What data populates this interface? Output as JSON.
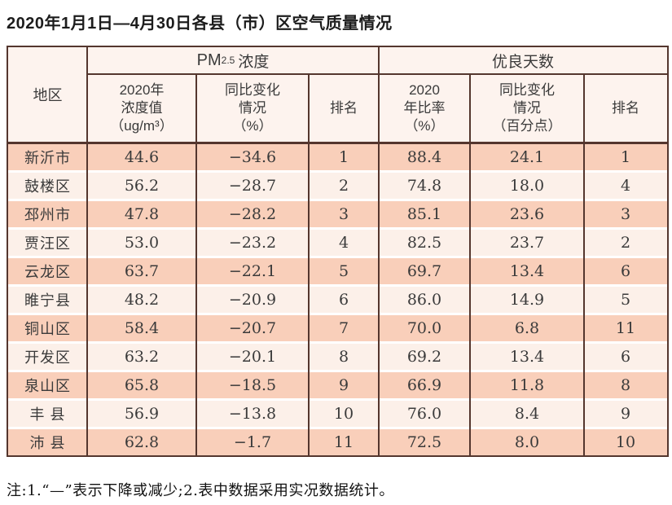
{
  "title": "2020年1月1日—4月30日各县（市）区空气质量情况",
  "note": "注:1.“—”表示下降或减少;2.表中数据采用实况数据统计。",
  "colors": {
    "grid_line": "#54362e",
    "row_salmon": "#f9cfba",
    "row_light": "#fcf0e9",
    "header_bg": "#fdf3ee",
    "text": "#3a3a3a"
  },
  "table": {
    "region_header": "地区",
    "group_pm25": {
      "pm": "PM",
      "sub": "2.5",
      "conc": "浓度"
    },
    "group_good_days": "优良天数",
    "subheaders": {
      "pm_value": "2020年\n浓度值\n（ug/m³）",
      "pm_change": "同比变化\n情况\n（%）",
      "pm_rank": "排名",
      "good_ratio": "2020\n年比率\n（%）",
      "good_change": "同比变化\n情况\n（百分点）",
      "good_rank": "排名"
    },
    "rows": [
      {
        "region": "新沂市",
        "pm_value": "44.6",
        "pm_change": "−34.6",
        "pm_rank": "1",
        "good_ratio": "88.4",
        "good_change": "24.1",
        "good_rank": "1"
      },
      {
        "region": "鼓楼区",
        "pm_value": "56.2",
        "pm_change": "−28.7",
        "pm_rank": "2",
        "good_ratio": "74.8",
        "good_change": "18.0",
        "good_rank": "4"
      },
      {
        "region": "邳州市",
        "pm_value": "47.8",
        "pm_change": "−28.2",
        "pm_rank": "3",
        "good_ratio": "85.1",
        "good_change": "23.6",
        "good_rank": "3"
      },
      {
        "region": "贾汪区",
        "pm_value": "53.0",
        "pm_change": "−23.2",
        "pm_rank": "4",
        "good_ratio": "82.5",
        "good_change": "23.7",
        "good_rank": "2"
      },
      {
        "region": "云龙区",
        "pm_value": "63.7",
        "pm_change": "−22.1",
        "pm_rank": "5",
        "good_ratio": "69.7",
        "good_change": "13.4",
        "good_rank": "6"
      },
      {
        "region": "睢宁县",
        "pm_value": "48.2",
        "pm_change": "−20.9",
        "pm_rank": "6",
        "good_ratio": "86.0",
        "good_change": "14.9",
        "good_rank": "5"
      },
      {
        "region": "铜山区",
        "pm_value": "58.4",
        "pm_change": "−20.7",
        "pm_rank": "7",
        "good_ratio": "70.0",
        "good_change": "6.8",
        "good_rank": "11"
      },
      {
        "region": "开发区",
        "pm_value": "63.2",
        "pm_change": "−20.1",
        "pm_rank": "8",
        "good_ratio": "69.2",
        "good_change": "13.4",
        "good_rank": "6"
      },
      {
        "region": "泉山区",
        "pm_value": "65.8",
        "pm_change": "−18.5",
        "pm_rank": "9",
        "good_ratio": "66.9",
        "good_change": "11.8",
        "good_rank": "8"
      },
      {
        "region": "丰 县",
        "pm_value": "56.9",
        "pm_change": "−13.8",
        "pm_rank": "10",
        "good_ratio": "76.0",
        "good_change": "8.4",
        "good_rank": "9"
      },
      {
        "region": "沛 县",
        "pm_value": "62.8",
        "pm_change": "−1.7",
        "pm_rank": "11",
        "good_ratio": "72.5",
        "good_change": "8.0",
        "good_rank": "10"
      }
    ]
  }
}
